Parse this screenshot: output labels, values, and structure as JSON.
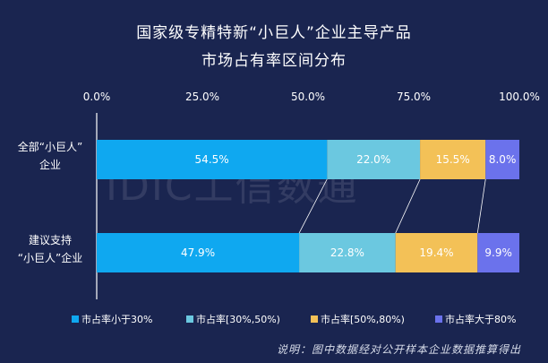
{
  "title_line1": "国家级专精特新“小巨人”企业主导产品",
  "title_line2": "市场占有率区间分布",
  "note": "说明：图中数据经对公开样本企业数据推算得出",
  "watermark": "IDIC工信数通",
  "colors": {
    "background": "#1a2550",
    "series": [
      "#0fa8f0",
      "#6bc8e0",
      "#f3c157",
      "#6b72ec"
    ]
  },
  "chart_data": {
    "type": "bar",
    "orientation": "horizontal",
    "stacked": true,
    "percent": true,
    "categories": [
      [
        "全部“小巨人”",
        "企业"
      ],
      [
        "建议支持",
        "“小巨人”企业"
      ]
    ],
    "series": [
      {
        "name": "市占率小于30%",
        "values": [
          54.5,
          47.9
        ],
        "labels": [
          "54.5%",
          "47.9%"
        ]
      },
      {
        "name": "市占率[30%,50%)",
        "values": [
          22.0,
          22.8
        ],
        "labels": [
          "22.0%",
          "22.8%"
        ]
      },
      {
        "name": "市占率[50%,80%)",
        "values": [
          15.5,
          19.4
        ],
        "labels": [
          "15.5%",
          "19.4%"
        ]
      },
      {
        "name": "市占率大于80%",
        "values": [
          8.0,
          9.9
        ],
        "labels": [
          "8.0%",
          "9.9%"
        ]
      }
    ],
    "xlim": [
      0,
      100
    ],
    "xticks": [
      "0.0%",
      "25.0%",
      "50.0%",
      "75.0%",
      "100.0%"
    ],
    "axis_position": "top",
    "legend": "bottom",
    "grid": false
  }
}
